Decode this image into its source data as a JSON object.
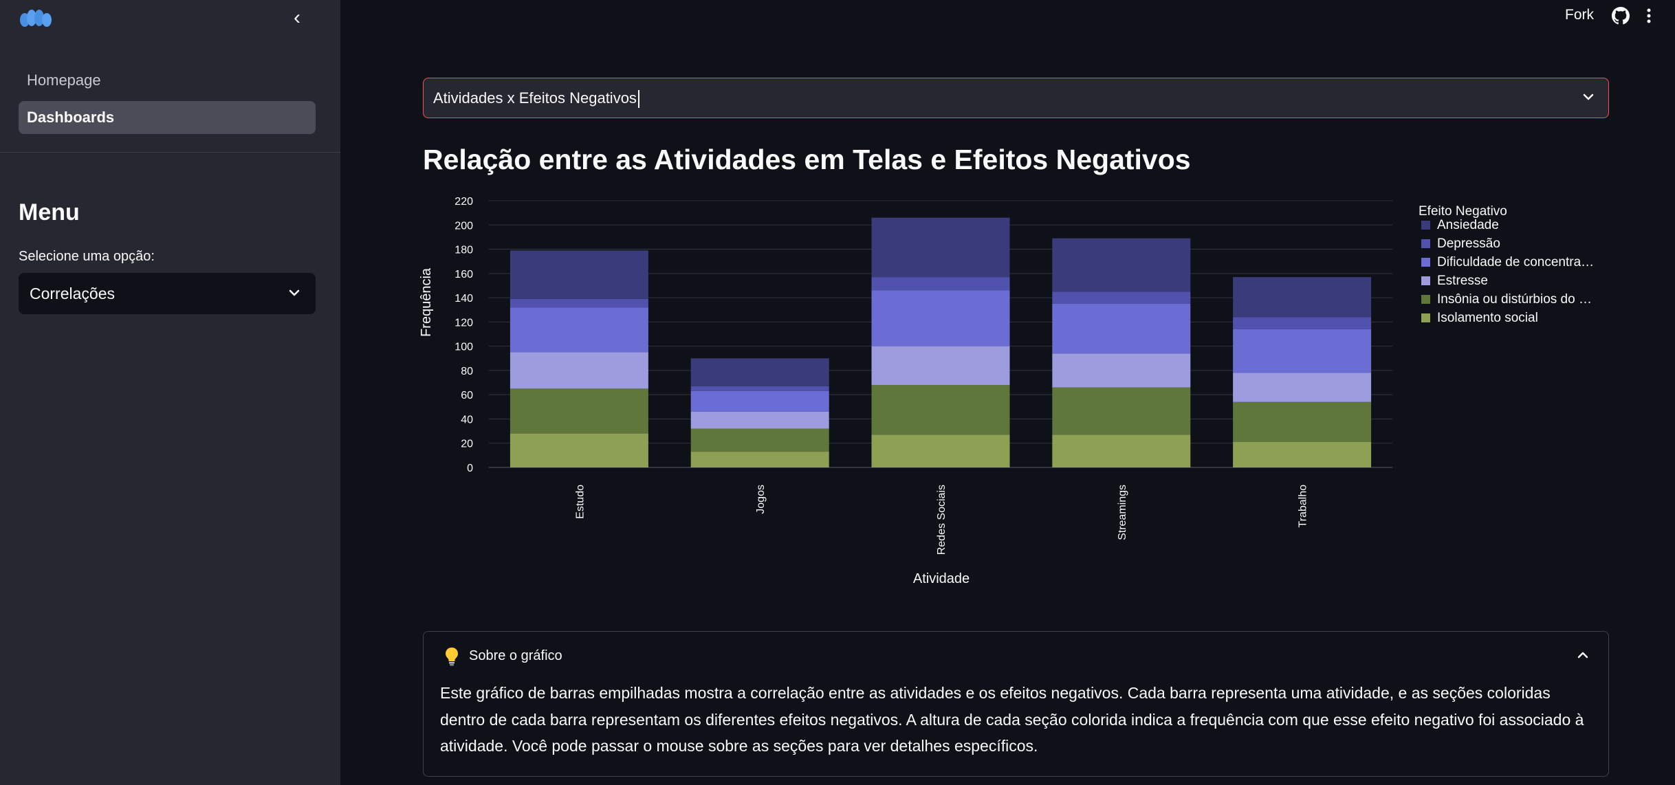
{
  "sidebar": {
    "nav": [
      {
        "label": "Homepage",
        "active": false
      },
      {
        "label": "Dashboards",
        "active": true
      }
    ],
    "menu_title": "Menu",
    "select_label": "Selecione uma opção:",
    "select_value": "Correlações"
  },
  "header": {
    "fork_label": "Fork"
  },
  "main": {
    "select_value": "Atividades x Efeitos Negativos",
    "title": "Relação entre as Atividades em Telas e Efeitos Negativos"
  },
  "chart_data": {
    "type": "bar",
    "stacked": true,
    "categories": [
      "Estudo",
      "Jogos",
      "Redes Sociais",
      "Streamings",
      "Trabalho"
    ],
    "xlabel": "Atividade",
    "ylabel": "Frequência",
    "ylim": [
      0,
      220
    ],
    "yticks": [
      0,
      20,
      40,
      60,
      80,
      100,
      120,
      140,
      160,
      180,
      200,
      220
    ],
    "legend_title": "Efeito Negativo",
    "legend_placement": "right",
    "series": [
      {
        "name": "Isolamento social",
        "color": "#8da054",
        "values": [
          28,
          13,
          27,
          27,
          21
        ]
      },
      {
        "name": "Insônia ou distúrbios do sono",
        "legend_label": "Insônia ou distúrbios do …",
        "color": "#5f773a",
        "values": [
          37,
          19,
          41,
          39,
          33
        ]
      },
      {
        "name": "Estresse",
        "color": "#9c9cdf",
        "values": [
          30,
          14,
          32,
          28,
          24
        ]
      },
      {
        "name": "Dificuldade de concentração",
        "legend_label": "Dificuldade de concentra…",
        "color": "#6b6dd4",
        "values": [
          37,
          17,
          46,
          41,
          36
        ]
      },
      {
        "name": "Depressão",
        "color": "#5052ad",
        "values": [
          7,
          4,
          11,
          10,
          10
        ]
      },
      {
        "name": "Ansiedade",
        "color": "#393b7a",
        "values": [
          40,
          23,
          49,
          44,
          33
        ]
      }
    ]
  },
  "expander": {
    "icon": "light-bulb-icon",
    "title": "Sobre o gráfico",
    "body": "Este gráfico de barras empilhadas mostra a correlação entre as atividades e os efeitos negativos. Cada barra representa uma atividade, e as seções coloridas dentro de cada barra representam os diferentes efeitos negativos. A altura de cada seção colorida indica a frequência com que esse efeito negativo foi associado à atividade. Você pode passar o mouse sobre as seções para ver detalhes específicos."
  }
}
